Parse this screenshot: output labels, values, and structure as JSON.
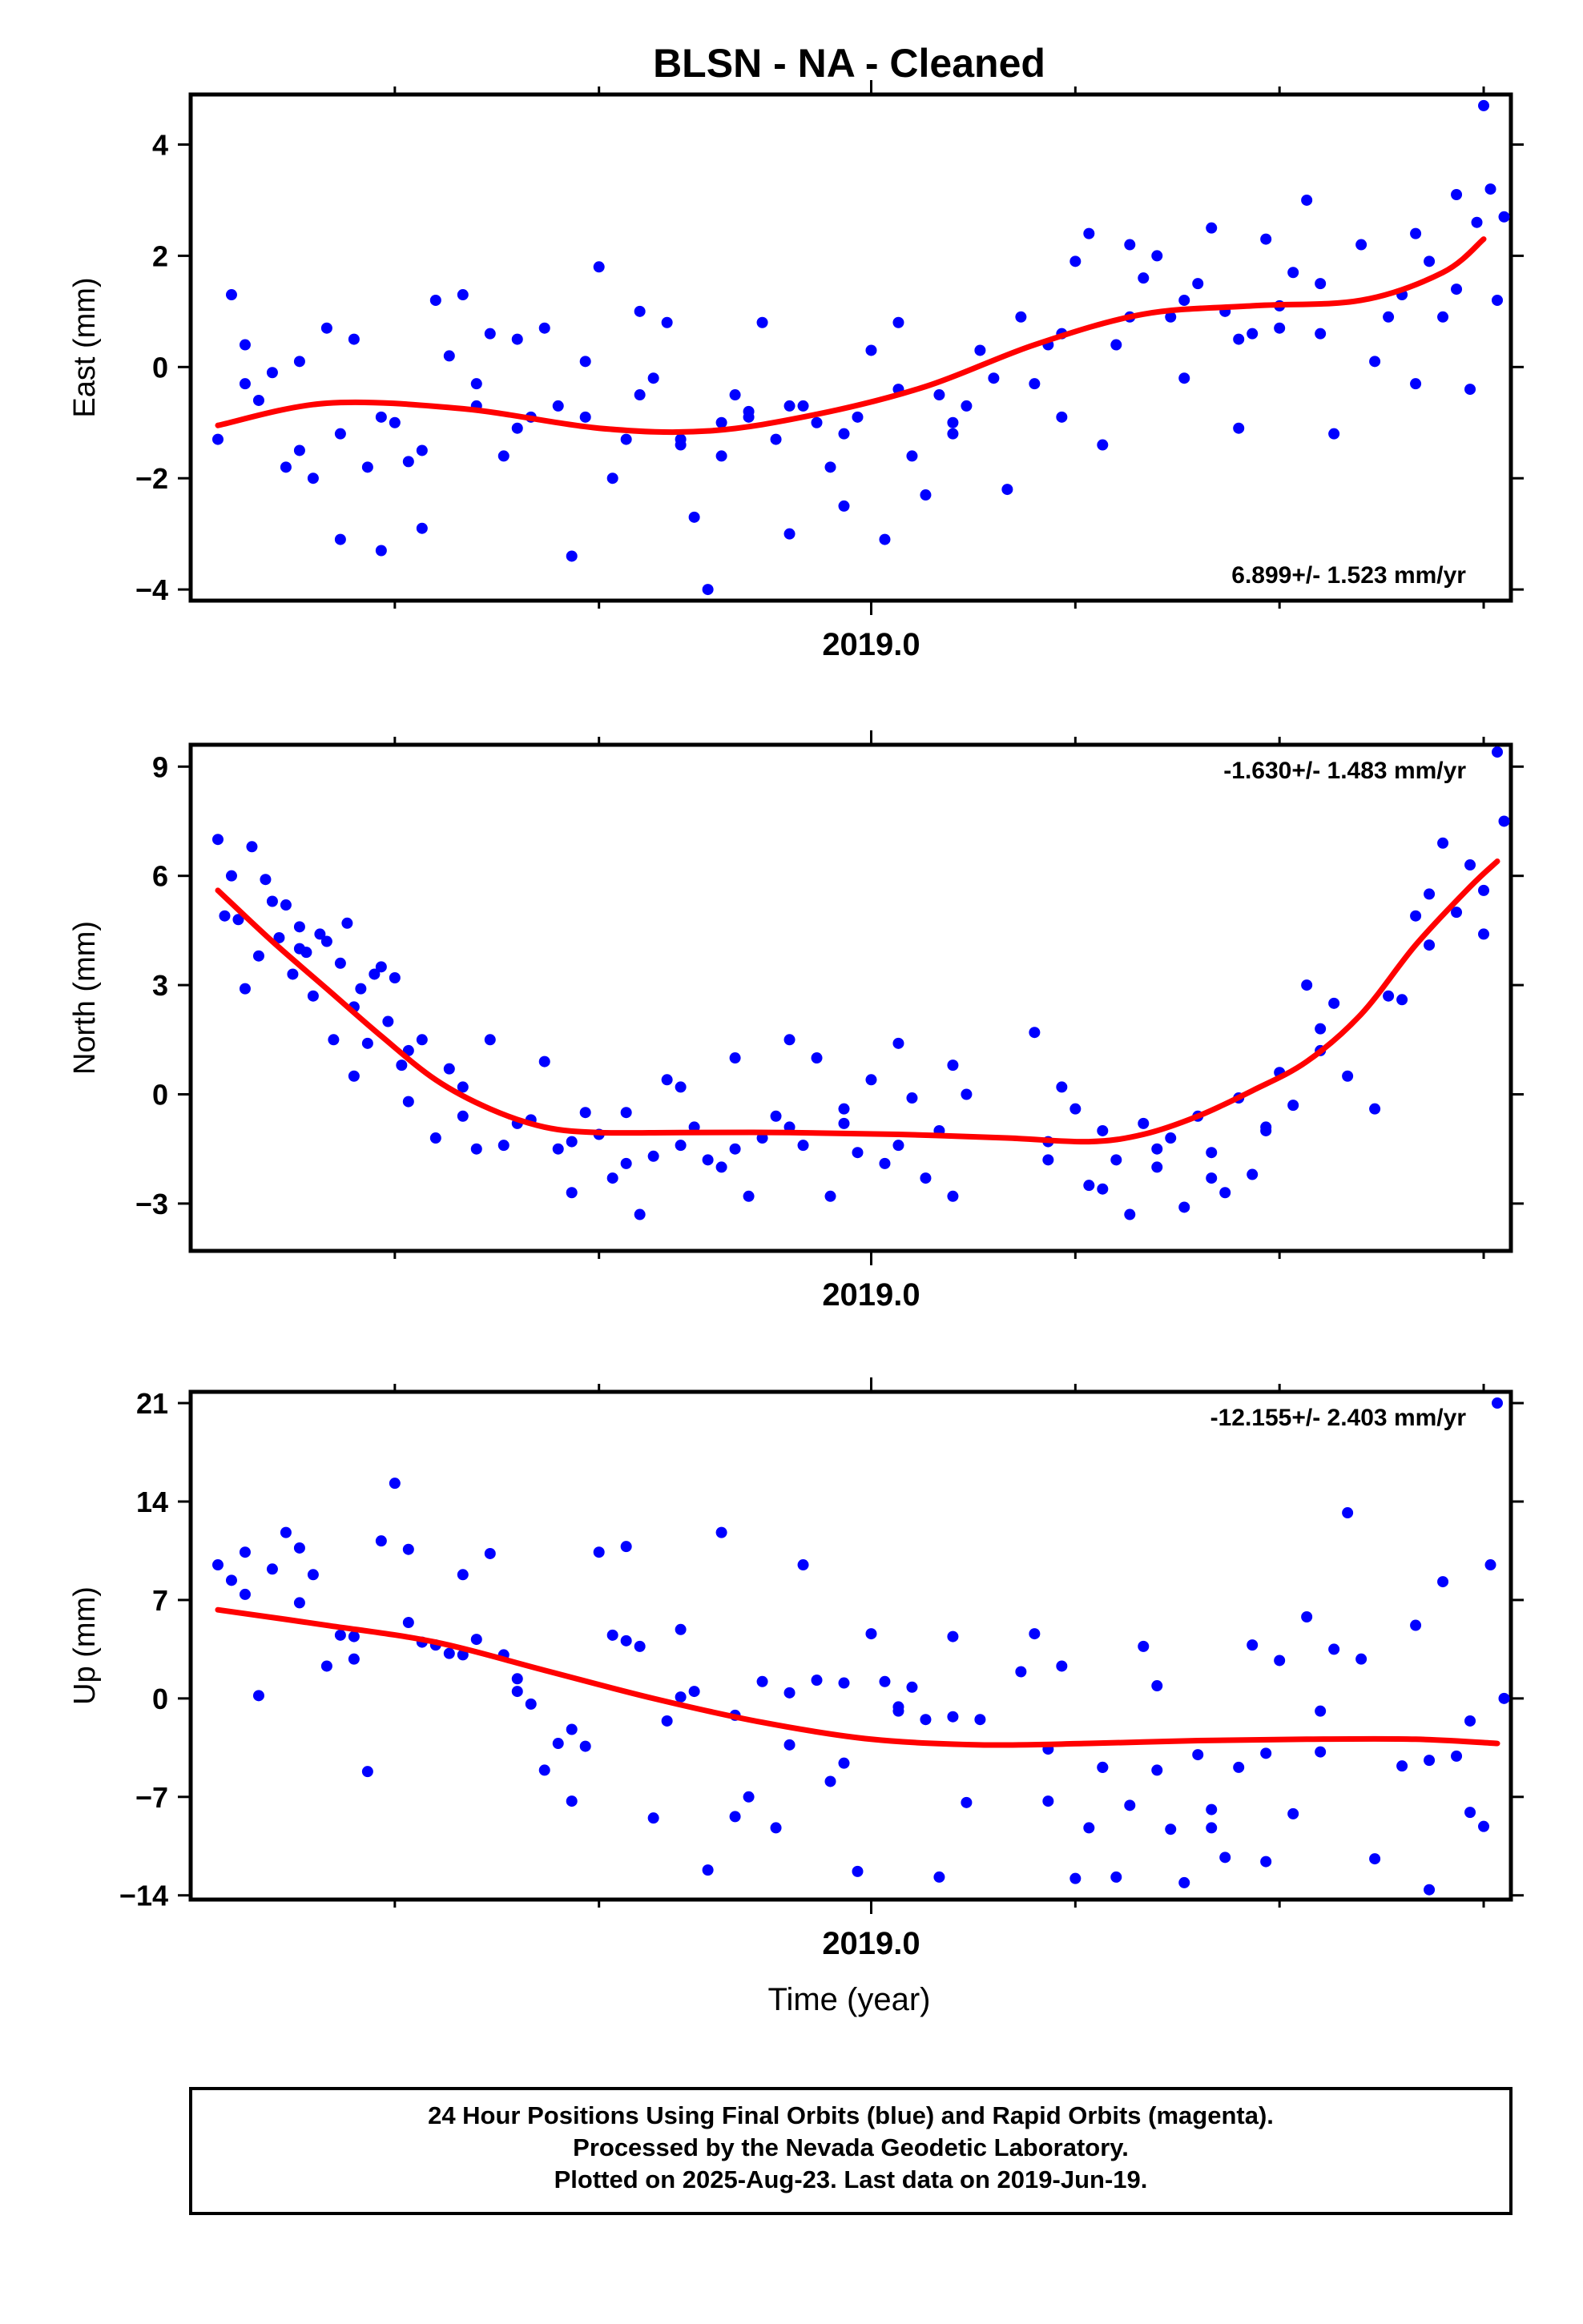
{
  "title": "BLSN  - NA - Cleaned",
  "x_axis_title": "Time (year)",
  "footer": {
    "line1": "24 Hour Positions Using Final Orbits (blue) and Rapid Orbits (magenta).",
    "line2": "Processed by the Nevada Geodetic Laboratory.",
    "line3": "Plotted on 2025-Aug-23. Last data on 2019-Jun-19."
  },
  "colors": {
    "final_orbits": "#0000ff",
    "fit_curve": "#ff0000",
    "frame": "#000000"
  },
  "chart_data": [
    {
      "type": "scatter",
      "name": "East",
      "ylabel": "East (mm)",
      "xlabel": "",
      "year_tick_label": "2019.0",
      "rate_label": "6.899+/- 1.523 mm/yr",
      "xlim": [
        2018.5,
        2019.47
      ],
      "ylim": [
        -4.2,
        4.9
      ],
      "yticks": [
        -4,
        -2,
        0,
        2,
        4
      ],
      "ytick_labels": [
        "−4",
        "−2",
        "0",
        "2",
        "4"
      ],
      "fit_curve": {
        "x": [
          2018.52,
          2018.6,
          2018.7,
          2018.8,
          2018.88,
          2018.96,
          2019.04,
          2019.12,
          2019.2,
          2019.28,
          2019.36,
          2019.42,
          2019.45
        ],
        "y": [
          -1.05,
          -0.65,
          -0.75,
          -1.1,
          -1.15,
          -0.85,
          -0.35,
          0.4,
          0.95,
          1.1,
          1.2,
          1.7,
          2.3
        ]
      },
      "points": {
        "x": [
          2018.52,
          2018.53,
          2018.54,
          2018.55,
          2018.56,
          2018.57,
          2018.58,
          2018.59,
          2018.6,
          2018.61,
          2018.62,
          2018.63,
          2018.64,
          2018.65,
          2018.66,
          2018.67,
          2018.68,
          2018.69,
          2018.7,
          2018.71,
          2018.72,
          2018.73,
          2018.74,
          2018.75,
          2018.76,
          2018.77,
          2018.78,
          2018.79,
          2018.8,
          2018.81,
          2018.82,
          2018.83,
          2018.84,
          2018.85,
          2018.86,
          2018.87,
          2018.88,
          2018.89,
          2018.9,
          2018.91,
          2018.92,
          2018.93,
          2018.94,
          2018.95,
          2018.96,
          2018.97,
          2018.98,
          2018.99,
          2019.0,
          2019.01,
          2019.02,
          2019.03,
          2019.04,
          2019.05,
          2019.06,
          2019.07,
          2019.08,
          2019.1,
          2019.11,
          2019.12,
          2019.13,
          2019.14,
          2019.15,
          2019.16,
          2019.17,
          2019.18,
          2019.19,
          2019.2,
          2019.21,
          2019.22,
          2019.23,
          2019.24,
          2019.25,
          2019.26,
          2019.27,
          2019.28,
          2019.29,
          2019.3,
          2019.31,
          2019.32,
          2019.33,
          2019.34,
          2019.36,
          2019.38,
          2019.39,
          2019.4,
          2019.41,
          2019.42,
          2019.43,
          2019.44,
          2019.45,
          2019.46
        ],
        "y": [
          -1.3,
          1.3,
          0.4,
          -0.6,
          -0.1,
          -1.8,
          -1.5,
          -2.0,
          0.7,
          -3.1,
          0.5,
          -1.8,
          -3.3,
          -1.0,
          -1.7,
          -2.9,
          1.2,
          0.2,
          1.3,
          -0.3,
          0.6,
          -1.6,
          0.5,
          -0.9,
          0.7,
          -0.7,
          -3.4,
          0.1,
          1.8,
          -2.0,
          -1.3,
          1.0,
          -0.2,
          0.8,
          -1.4,
          -2.7,
          -4.0,
          -1.6,
          -0.5,
          -0.9,
          0.8,
          -1.3,
          -3.0,
          -0.7,
          -1.0,
          -1.8,
          -2.5,
          -0.9,
          0.3,
          -3.1,
          0.8,
          -1.6,
          -2.3,
          -0.5,
          -1.2,
          -0.7,
          0.3,
          -2.2,
          0.9,
          -0.3,
          0.4,
          -0.9,
          1.9,
          2.4,
          -1.4,
          0.4,
          2.2,
          1.6,
          2.0,
          0.9,
          -0.2,
          1.5,
          2.5,
          1.0,
          -1.1,
          0.6,
          2.3,
          1.1,
          1.7,
          3.0,
          0.6,
          -1.2,
          2.2,
          0.9,
          1.3,
          -0.3,
          1.9,
          0.9,
          1.4,
          -0.4,
          4.7,
          1.2
        ],
        "extra_x": [
          2018.54,
          2018.58,
          2018.61,
          2018.64,
          2018.67,
          2018.71,
          2018.74,
          2018.79,
          2018.83,
          2018.86,
          2018.89,
          2018.91,
          2018.94,
          2018.98,
          2019.02,
          2019.06,
          2019.09,
          2019.14,
          2019.19,
          2019.23,
          2019.27,
          2019.3,
          2019.33,
          2019.37,
          2019.4,
          2019.43,
          2019.445,
          2019.455,
          2019.465
        ],
        "extra_y": [
          -0.3,
          0.1,
          -1.2,
          -0.9,
          -1.5,
          -0.7,
          -1.1,
          -0.9,
          -0.5,
          -1.3,
          -1.0,
          -0.8,
          -0.7,
          -1.2,
          -0.4,
          -1.0,
          -0.2,
          0.6,
          0.9,
          1.2,
          0.5,
          0.7,
          1.5,
          0.1,
          2.4,
          3.1,
          2.6,
          3.2,
          2.7
        ]
      }
    },
    {
      "type": "scatter",
      "name": "North",
      "ylabel": "North (mm)",
      "xlabel": "",
      "year_tick_label": "2019.0",
      "rate_label": "-1.630+/- 1.483 mm/yr",
      "xlim": [
        2018.5,
        2019.47
      ],
      "ylim": [
        -4.3,
        9.6
      ],
      "yticks": [
        -3,
        0,
        3,
        6,
        9
      ],
      "ytick_labels": [
        "−3",
        "0",
        "3",
        "6",
        "9"
      ],
      "fit_curve": {
        "x": [
          2018.52,
          2018.56,
          2018.6,
          2018.64,
          2018.68,
          2018.72,
          2018.76,
          2018.8,
          2018.86,
          2018.94,
          2019.02,
          2019.1,
          2019.16,
          2019.2,
          2019.24,
          2019.28,
          2019.32,
          2019.36,
          2019.4,
          2019.44,
          2019.46
        ],
        "y": [
          5.6,
          4.2,
          2.9,
          1.6,
          0.4,
          -0.4,
          -0.9,
          -1.05,
          -1.05,
          -1.05,
          -1.1,
          -1.2,
          -1.3,
          -1.1,
          -0.6,
          0.1,
          0.9,
          2.2,
          4.1,
          5.7,
          6.4
        ]
      },
      "points": {
        "x": [
          2018.52,
          2018.525,
          2018.53,
          2018.535,
          2018.54,
          2018.545,
          2018.55,
          2018.555,
          2018.56,
          2018.565,
          2018.57,
          2018.575,
          2018.58,
          2018.585,
          2018.59,
          2018.595,
          2018.6,
          2018.605,
          2018.61,
          2018.615,
          2018.62,
          2018.625,
          2018.63,
          2018.635,
          2018.64,
          2018.645,
          2018.65,
          2018.655,
          2018.66,
          2018.67,
          2018.68,
          2018.69,
          2018.7,
          2018.71,
          2018.72,
          2018.73,
          2018.75,
          2018.76,
          2018.77,
          2018.78,
          2018.79,
          2018.8,
          2018.81,
          2018.82,
          2018.83,
          2018.84,
          2018.85,
          2018.86,
          2018.87,
          2018.88,
          2018.89,
          2018.9,
          2018.91,
          2018.92,
          2018.93,
          2018.94,
          2018.95,
          2018.96,
          2018.97,
          2018.98,
          2018.99,
          2019.0,
          2019.01,
          2019.02,
          2019.03,
          2019.04,
          2019.05,
          2019.06,
          2019.07,
          2019.12,
          2019.13,
          2019.14,
          2019.15,
          2019.16,
          2019.17,
          2019.18,
          2019.19,
          2019.2,
          2019.21,
          2019.22,
          2019.23,
          2019.24,
          2019.25,
          2019.26,
          2019.27,
          2019.28,
          2019.29,
          2019.3,
          2019.31,
          2019.32,
          2019.33,
          2019.34,
          2019.35,
          2019.38,
          2019.39,
          2019.4,
          2019.41,
          2019.42,
          2019.43,
          2019.44,
          2019.45,
          2019.46,
          2019.465
        ],
        "y": [
          7.0,
          4.9,
          6.0,
          4.8,
          2.9,
          6.8,
          3.8,
          5.9,
          5.3,
          4.3,
          5.2,
          3.3,
          4.6,
          3.9,
          2.7,
          4.4,
          4.2,
          1.5,
          3.6,
          4.7,
          0.5,
          2.9,
          1.4,
          3.3,
          3.5,
          2.0,
          3.2,
          0.8,
          -0.2,
          1.5,
          -1.2,
          0.7,
          0.2,
          -1.5,
          1.5,
          -1.4,
          -0.7,
          0.9,
          -1.5,
          -2.7,
          -0.5,
          -1.1,
          -2.3,
          -0.5,
          -3.3,
          -1.7,
          0.4,
          -1.4,
          -0.9,
          -1.8,
          -2.0,
          1.0,
          -2.8,
          -1.2,
          -0.6,
          1.5,
          -1.4,
          1.0,
          -2.8,
          -0.8,
          -1.6,
          0.4,
          -1.9,
          1.4,
          -0.1,
          -2.3,
          -1.0,
          -2.8,
          0.0,
          1.7,
          -1.3,
          0.2,
          -0.4,
          -2.5,
          -1.0,
          -1.8,
          -3.3,
          -0.8,
          -2.0,
          -1.2,
          -3.1,
          -0.6,
          -1.6,
          -2.7,
          -0.1,
          -2.2,
          -1.0,
          0.6,
          -0.3,
          3.0,
          1.2,
          2.5,
          0.5,
          2.7,
          2.6,
          4.9,
          5.5,
          6.9,
          5.0,
          6.3,
          4.4,
          9.4,
          7.5
        ],
        "extra_x": [
          2018.58,
          2018.62,
          2018.66,
          2018.7,
          2018.74,
          2018.78,
          2018.82,
          2018.86,
          2018.9,
          2018.94,
          2018.98,
          2019.02,
          2019.06,
          2019.13,
          2019.17,
          2019.21,
          2019.25,
          2019.29,
          2019.33,
          2019.37,
          2019.41,
          2019.45
        ],
        "extra_y": [
          4.0,
          2.4,
          1.2,
          -0.6,
          -0.8,
          -1.3,
          -1.9,
          0.2,
          -1.5,
          -0.9,
          -0.4,
          -1.4,
          0.8,
          -1.8,
          -2.6,
          -1.5,
          -2.3,
          -0.9,
          1.8,
          -0.4,
          4.1,
          5.6
        ]
      }
    },
    {
      "type": "scatter",
      "name": "Up",
      "ylabel": "Up (mm)",
      "xlabel": "Time (year)",
      "year_tick_label": "2019.0",
      "rate_label": "-12.155+/- 2.403 mm/yr",
      "xlim": [
        2018.5,
        2019.47
      ],
      "ylim": [
        -14.3,
        21.8
      ],
      "yticks": [
        -14,
        -7,
        0,
        7,
        14,
        21
      ],
      "ytick_labels": [
        "−14",
        "−7",
        "0",
        "7",
        "14",
        "21"
      ],
      "fit_curve": {
        "x": [
          2018.52,
          2018.6,
          2018.68,
          2018.76,
          2018.84,
          2018.92,
          2019.0,
          2019.08,
          2019.16,
          2019.24,
          2019.32,
          2019.4,
          2019.46
        ],
        "y": [
          6.3,
          5.2,
          4.0,
          2.0,
          0.0,
          -1.7,
          -2.9,
          -3.3,
          -3.2,
          -3.0,
          -2.9,
          -2.9,
          -3.2
        ]
      },
      "points": {
        "x": [
          2018.52,
          2018.53,
          2018.54,
          2018.55,
          2018.56,
          2018.57,
          2018.58,
          2018.59,
          2018.6,
          2018.61,
          2018.62,
          2018.63,
          2018.64,
          2018.65,
          2018.66,
          2018.67,
          2018.68,
          2018.69,
          2018.7,
          2018.71,
          2018.72,
          2018.73,
          2018.74,
          2018.75,
          2018.76,
          2018.77,
          2018.78,
          2018.79,
          2018.8,
          2018.81,
          2018.82,
          2018.83,
          2018.84,
          2018.85,
          2018.86,
          2018.87,
          2018.88,
          2018.89,
          2018.9,
          2018.91,
          2018.92,
          2018.93,
          2018.94,
          2018.95,
          2018.96,
          2018.97,
          2018.98,
          2018.99,
          2019.0,
          2019.01,
          2019.02,
          2019.03,
          2019.04,
          2019.05,
          2019.06,
          2019.07,
          2019.08,
          2019.11,
          2019.12,
          2019.13,
          2019.14,
          2019.15,
          2019.16,
          2019.17,
          2019.18,
          2019.19,
          2019.2,
          2019.21,
          2019.22,
          2019.23,
          2019.24,
          2019.25,
          2019.26,
          2019.27,
          2019.28,
          2019.29,
          2019.3,
          2019.31,
          2019.32,
          2019.33,
          2019.34,
          2019.35,
          2019.36,
          2019.39,
          2019.4,
          2019.41,
          2019.42,
          2019.43,
          2019.44,
          2019.45,
          2019.46
        ],
        "y": [
          9.5,
          8.4,
          10.4,
          0.2,
          9.2,
          11.8,
          10.7,
          8.8,
          2.3,
          4.5,
          2.8,
          -5.2,
          11.2,
          15.3,
          10.6,
          4.0,
          3.8,
          3.2,
          8.8,
          4.2,
          10.3,
          3.1,
          0.5,
          -0.4,
          -5.1,
          -3.2,
          -7.3,
          -3.4,
          10.4,
          4.5,
          10.8,
          3.7,
          -8.5,
          -1.6,
          4.9,
          0.5,
          -12.2,
          11.8,
          -8.4,
          -7.0,
          1.2,
          -9.2,
          0.4,
          9.5,
          1.3,
          -5.9,
          1.1,
          -12.3,
          4.6,
          1.2,
          -0.9,
          0.8,
          -1.5,
          -12.7,
          4.4,
          -7.4,
          -1.5,
          1.9,
          4.6,
          -7.3,
          2.3,
          -12.8,
          -9.2,
          -4.9,
          -12.7,
          -7.6,
          3.7,
          0.9,
          -9.3,
          -13.1,
          -4.0,
          -9.2,
          -11.3,
          -4.9,
          3.8,
          -11.6,
          2.7,
          -8.2,
          5.8,
          -0.9,
          3.5,
          13.2,
          2.8,
          -4.8,
          5.2,
          -13.6,
          8.3,
          -4.1,
          -8.1,
          -9.1,
          21.0
        ],
        "extra_x": [
          2018.54,
          2018.58,
          2018.62,
          2018.66,
          2018.7,
          2018.74,
          2018.78,
          2018.82,
          2018.86,
          2018.9,
          2018.94,
          2018.98,
          2019.02,
          2019.06,
          2019.13,
          2019.17,
          2019.21,
          2019.25,
          2019.29,
          2019.33,
          2019.37,
          2019.41,
          2019.44,
          2019.455,
          2019.465
        ],
        "extra_y": [
          7.4,
          6.8,
          4.4,
          5.4,
          3.1,
          1.4,
          -2.2,
          4.1,
          0.1,
          -1.2,
          -3.3,
          -4.6,
          -0.6,
          -1.3,
          -3.6,
          -4.9,
          -5.1,
          -7.9,
          -3.9,
          -3.8,
          -11.4,
          -4.4,
          -1.6,
          9.5,
          0.0
        ]
      }
    }
  ]
}
